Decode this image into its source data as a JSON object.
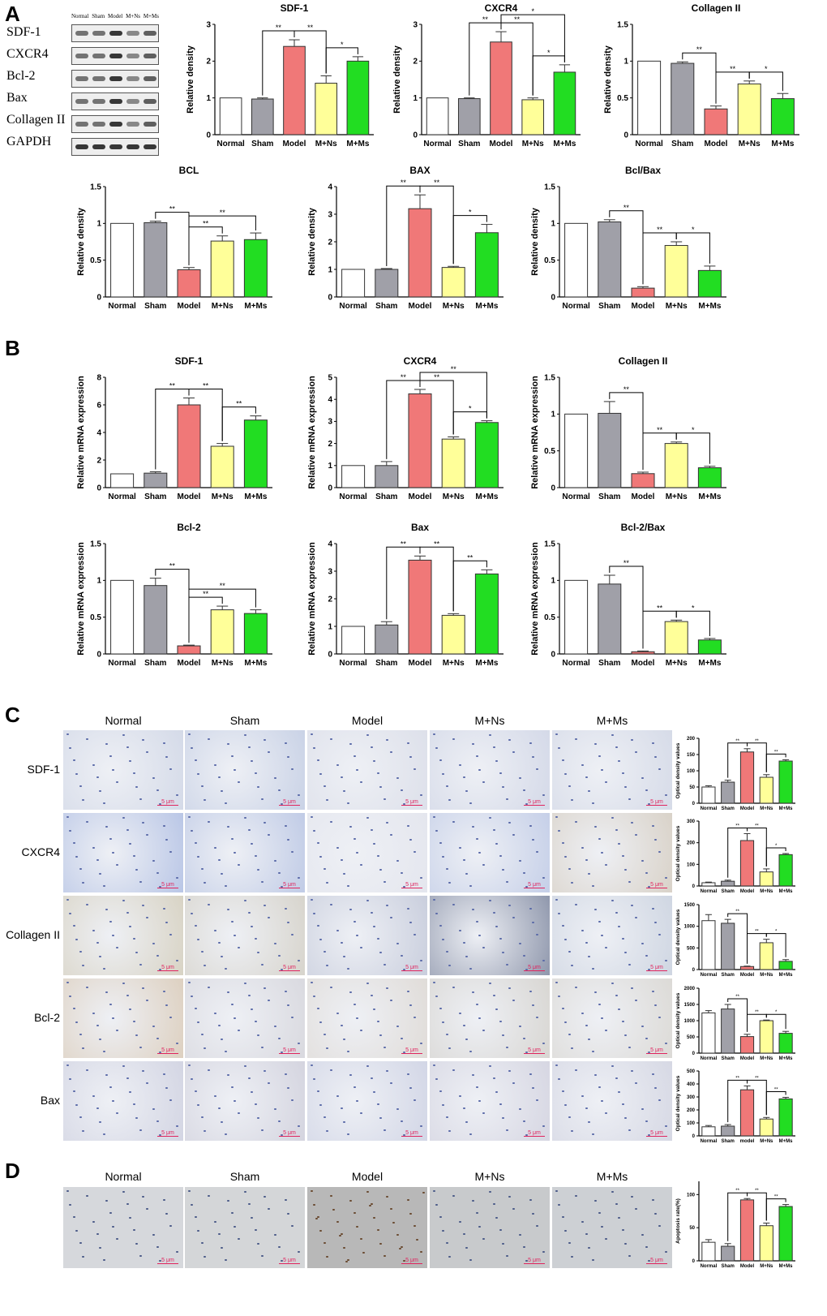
{
  "panels": {
    "a": "A",
    "b": "B",
    "c": "C",
    "d": "D"
  },
  "blot": {
    "lanes": [
      "Normal",
      "Sham",
      "Model",
      "M+Ns",
      "M+Ms"
    ],
    "rows": [
      "SDF-1",
      "CXCR4",
      "Bcl-2",
      "Bax",
      "Collagen II",
      "GAPDH"
    ]
  },
  "groups": [
    "Normal",
    "Sham",
    "Model",
    "M+Ns",
    "M+Ms"
  ],
  "ihc": {
    "rows": [
      "SDF-1",
      "CXCR4",
      "Collagen II",
      "Bcl-2",
      "Bax"
    ],
    "scale": "5 μm"
  },
  "tunel": {
    "scale": "5 μm"
  },
  "colors": {
    "Normal": "#ffffff",
    "Sham": "#a0a0a8",
    "Model": "#f07878",
    "M+Ns": "#ffff99",
    "M+Ms": "#22dd22"
  },
  "chart_data": [
    {
      "type": "bar",
      "title": "SDF-1",
      "ylabel": "Relative density",
      "categories": [
        "Normal",
        "Sham",
        "Model",
        "M+Ns",
        "M+Ms"
      ],
      "values": [
        1,
        0.97,
        2.4,
        1.4,
        2.0
      ],
      "errors": [
        0,
        0.03,
        0.18,
        0.2,
        0.12
      ],
      "ylim": [
        0,
        3
      ],
      "ticks": [
        0,
        1,
        2,
        3
      ],
      "sig": [
        [
          1,
          2,
          "**"
        ],
        [
          2,
          3,
          "**"
        ],
        [
          3,
          4,
          "*"
        ]
      ]
    },
    {
      "type": "bar",
      "title": "CXCR4",
      "ylabel": "Relative density",
      "categories": [
        "Normal",
        "Sham",
        "Model",
        "M+Ns",
        "M+Ms"
      ],
      "values": [
        1,
        0.98,
        2.52,
        0.95,
        1.7
      ],
      "errors": [
        0,
        0.02,
        0.28,
        0.05,
        0.2
      ],
      "ylim": [
        0,
        3
      ],
      "ticks": [
        0,
        1,
        2,
        3
      ],
      "sig": [
        [
          1,
          2,
          "**"
        ],
        [
          2,
          3,
          "**"
        ],
        [
          2,
          4,
          "*"
        ],
        [
          3,
          4,
          "*"
        ]
      ]
    },
    {
      "type": "bar",
      "title": "Collagen II",
      "ylabel": "Relative density",
      "categories": [
        "Normal",
        "Sham",
        "Model",
        "M+Ns",
        "M+Ms"
      ],
      "values": [
        1,
        0.97,
        0.35,
        0.69,
        0.49
      ],
      "errors": [
        0,
        0.02,
        0.04,
        0.04,
        0.07
      ],
      "ylim": [
        0,
        1.5
      ],
      "ticks": [
        0,
        0.5,
        1.0,
        1.5
      ],
      "sig": [
        [
          1,
          2,
          "**"
        ],
        [
          2,
          3,
          "**"
        ],
        [
          3,
          4,
          "*"
        ]
      ]
    },
    {
      "type": "bar",
      "title": "BCL",
      "ylabel": "Relative density",
      "categories": [
        "Normal",
        "Sham",
        "Model",
        "M+Ns",
        "M+Ms"
      ],
      "values": [
        1,
        1.01,
        0.37,
        0.76,
        0.78
      ],
      "errors": [
        0,
        0.02,
        0.03,
        0.07,
        0.09
      ],
      "ylim": [
        0,
        1.5
      ],
      "ticks": [
        0,
        0.5,
        1.0,
        1.5
      ],
      "sig": [
        [
          1,
          2,
          "**"
        ],
        [
          2,
          3,
          "**"
        ],
        [
          2,
          4,
          "**"
        ]
      ]
    },
    {
      "type": "bar",
      "title": "BAX",
      "ylabel": "Relative density",
      "categories": [
        "Normal",
        "Sham",
        "Model",
        "M+Ns",
        "M+Ms"
      ],
      "values": [
        1,
        1.0,
        3.2,
        1.07,
        2.33
      ],
      "errors": [
        0,
        0.03,
        0.5,
        0.04,
        0.3
      ],
      "ylim": [
        0,
        4
      ],
      "ticks": [
        0,
        1,
        2,
        3,
        4
      ],
      "sig": [
        [
          1,
          2,
          "**"
        ],
        [
          2,
          3,
          "**"
        ],
        [
          3,
          4,
          "*"
        ]
      ]
    },
    {
      "type": "bar",
      "title": "Bcl/Bax",
      "ylabel": "Relative density",
      "categories": [
        "Normal",
        "Sham",
        "Model",
        "M+Ns",
        "M+Ms"
      ],
      "values": [
        1,
        1.02,
        0.12,
        0.7,
        0.36
      ],
      "errors": [
        0,
        0.03,
        0.02,
        0.05,
        0.06
      ],
      "ylim": [
        0,
        1.5
      ],
      "ticks": [
        0,
        0.5,
        1.0,
        1.5
      ],
      "sig": [
        [
          1,
          2,
          "**"
        ],
        [
          2,
          3,
          "**"
        ],
        [
          3,
          4,
          "*"
        ]
      ]
    },
    {
      "type": "bar",
      "title": "SDF-1",
      "ylabel": "Relative mRNA expression",
      "categories": [
        "Normal",
        "Sham",
        "Model",
        "M+Ns",
        "M+Ms"
      ],
      "values": [
        1,
        1.05,
        6.0,
        3.0,
        4.9
      ],
      "errors": [
        0,
        0.1,
        0.5,
        0.2,
        0.3
      ],
      "ylim": [
        0,
        8
      ],
      "ticks": [
        0,
        2,
        4,
        6,
        8
      ],
      "sig": [
        [
          1,
          2,
          "**"
        ],
        [
          2,
          3,
          "**"
        ],
        [
          3,
          4,
          "**"
        ]
      ]
    },
    {
      "type": "bar",
      "title": "CXCR4",
      "ylabel": "Relative mRNA expression",
      "categories": [
        "Normal",
        "Sham",
        "Model",
        "M+Ns",
        "M+Ms"
      ],
      "values": [
        1,
        1.0,
        4.25,
        2.2,
        2.95
      ],
      "errors": [
        0,
        0.18,
        0.2,
        0.1,
        0.08
      ],
      "ylim": [
        0,
        5
      ],
      "ticks": [
        0,
        1,
        2,
        3,
        4,
        5
      ],
      "sig": [
        [
          1,
          2,
          "**"
        ],
        [
          2,
          3,
          "**"
        ],
        [
          2,
          4,
          "**"
        ],
        [
          3,
          4,
          "*"
        ]
      ]
    },
    {
      "type": "bar",
      "title": "Collagen II",
      "ylabel": "Relative mRNA expression",
      "categories": [
        "Normal",
        "Sham",
        "Model",
        "M+Ns",
        "M+Ms"
      ],
      "values": [
        1,
        1.01,
        0.19,
        0.6,
        0.27
      ],
      "errors": [
        0,
        0.16,
        0.02,
        0.02,
        0.02
      ],
      "ylim": [
        0,
        1.5
      ],
      "ticks": [
        0,
        0.5,
        1.0,
        1.5
      ],
      "sig": [
        [
          1,
          2,
          "**"
        ],
        [
          2,
          3,
          "**"
        ],
        [
          3,
          4,
          "*"
        ]
      ]
    },
    {
      "type": "bar",
      "title": "Bcl-2",
      "ylabel": "Relative mRNA expression",
      "categories": [
        "Normal",
        "Sham",
        "Model",
        "M+Ns",
        "M+Ms"
      ],
      "values": [
        1,
        0.93,
        0.11,
        0.6,
        0.55
      ],
      "errors": [
        0,
        0.1,
        0.01,
        0.05,
        0.05
      ],
      "ylim": [
        0,
        1.5
      ],
      "ticks": [
        0,
        0.5,
        1.0,
        1.5
      ],
      "sig": [
        [
          1,
          2,
          "**"
        ],
        [
          2,
          3,
          "**"
        ],
        [
          2,
          4,
          "**"
        ]
      ]
    },
    {
      "type": "bar",
      "title": "Bax",
      "ylabel": "Relative mRNA expression",
      "categories": [
        "Normal",
        "Sham",
        "Model",
        "M+Ns",
        "M+Ms"
      ],
      "values": [
        1,
        1.05,
        3.4,
        1.4,
        2.9
      ],
      "errors": [
        0,
        0.12,
        0.15,
        0.06,
        0.15
      ],
      "ylim": [
        0,
        4
      ],
      "ticks": [
        0,
        1,
        2,
        3,
        4
      ],
      "sig": [
        [
          1,
          2,
          "**"
        ],
        [
          2,
          3,
          "**"
        ],
        [
          3,
          4,
          "**"
        ]
      ]
    },
    {
      "type": "bar",
      "title": "Bcl-2/Bax",
      "ylabel": "Relative mRNA expression",
      "categories": [
        "Normal",
        "Sham",
        "Model",
        "M+Ns",
        "M+Ms"
      ],
      "values": [
        1,
        0.95,
        0.03,
        0.44,
        0.19
      ],
      "errors": [
        0,
        0.12,
        0.01,
        0.02,
        0.02
      ],
      "ylim": [
        0,
        1.5
      ],
      "ticks": [
        0,
        0.5,
        1.0,
        1.5
      ],
      "sig": [
        [
          1,
          2,
          "**"
        ],
        [
          2,
          3,
          "**"
        ],
        [
          3,
          4,
          "*"
        ]
      ]
    },
    {
      "type": "bar",
      "title": "",
      "ylabel": "Optical density values",
      "categories": [
        "Normal",
        "Sham",
        "Model",
        "M+Ns",
        "M+Ms"
      ],
      "values": [
        50,
        65,
        158,
        80,
        130
      ],
      "errors": [
        4,
        6,
        10,
        8,
        4
      ],
      "ylim": [
        0,
        200
      ],
      "ticks": [
        0,
        50,
        100,
        150,
        200
      ],
      "sig": [
        [
          1,
          2,
          "**"
        ],
        [
          2,
          3,
          "**"
        ],
        [
          3,
          4,
          "**"
        ]
      ]
    },
    {
      "type": "bar",
      "title": "",
      "ylabel": "Optical density values",
      "categories": [
        "Normal",
        "Sham",
        "Model",
        "M+Ns",
        "M+Ms"
      ],
      "values": [
        15,
        22,
        210,
        65,
        145
      ],
      "errors": [
        3,
        5,
        32,
        14,
        5
      ],
      "ylim": [
        0,
        300
      ],
      "ticks": [
        0,
        100,
        200,
        300
      ],
      "sig": [
        [
          1,
          2,
          "**"
        ],
        [
          2,
          3,
          "**"
        ],
        [
          3,
          4,
          "*"
        ]
      ]
    },
    {
      "type": "bar",
      "title": "",
      "ylabel": "Optical density values",
      "categories": [
        "Normal",
        "Sham",
        "Model",
        "M+Ns",
        "M+Ms"
      ],
      "values": [
        1130,
        1070,
        70,
        620,
        190
      ],
      "errors": [
        140,
        90,
        10,
        80,
        40
      ],
      "ylim": [
        0,
        1500
      ],
      "ticks": [
        0,
        500,
        1000,
        1500
      ],
      "sig": [
        [
          1,
          2,
          "**"
        ],
        [
          2,
          3,
          "**"
        ],
        [
          3,
          4,
          "*"
        ]
      ]
    },
    {
      "type": "bar",
      "title": "",
      "ylabel": "Optical density values",
      "categories": [
        "Normal",
        "Sham",
        "Model",
        "M+Ns",
        "M+Ms"
      ],
      "values": [
        1240,
        1360,
        510,
        1000,
        610
      ],
      "errors": [
        70,
        140,
        70,
        20,
        60
      ],
      "ylim": [
        0,
        2000
      ],
      "ticks": [
        0,
        500,
        1000,
        1500,
        2000
      ],
      "sig": [
        [
          1,
          2,
          "**"
        ],
        [
          2,
          3,
          "**"
        ],
        [
          3,
          4,
          "*"
        ]
      ]
    },
    {
      "type": "bar",
      "title": "",
      "ylabel": "Optical density values",
      "categories": [
        "Normal",
        "Sham",
        "model",
        "M+Ns",
        "M+Ms"
      ],
      "values": [
        70,
        75,
        355,
        130,
        285
      ],
      "errors": [
        10,
        12,
        30,
        12,
        12
      ],
      "ylim": [
        0,
        500
      ],
      "ticks": [
        0,
        100,
        200,
        300,
        400,
        500
      ],
      "sig": [
        [
          1,
          2,
          "**"
        ],
        [
          2,
          3,
          "**"
        ],
        [
          3,
          4,
          "**"
        ]
      ]
    },
    {
      "type": "bar",
      "title": "",
      "ylabel": "Apoptosis rate(%)",
      "categories": [
        "Normal",
        "Sham",
        "Model",
        "M+Ns",
        "M+Ms"
      ],
      "values": [
        28,
        22,
        92,
        53,
        82
      ],
      "errors": [
        4,
        4,
        2,
        4,
        3
      ],
      "ylim": [
        0,
        120
      ],
      "ticks": [
        0,
        50,
        100
      ],
      "sig": [
        [
          1,
          2,
          "**"
        ],
        [
          2,
          3,
          "**"
        ],
        [
          3,
          4,
          "**"
        ]
      ]
    }
  ]
}
